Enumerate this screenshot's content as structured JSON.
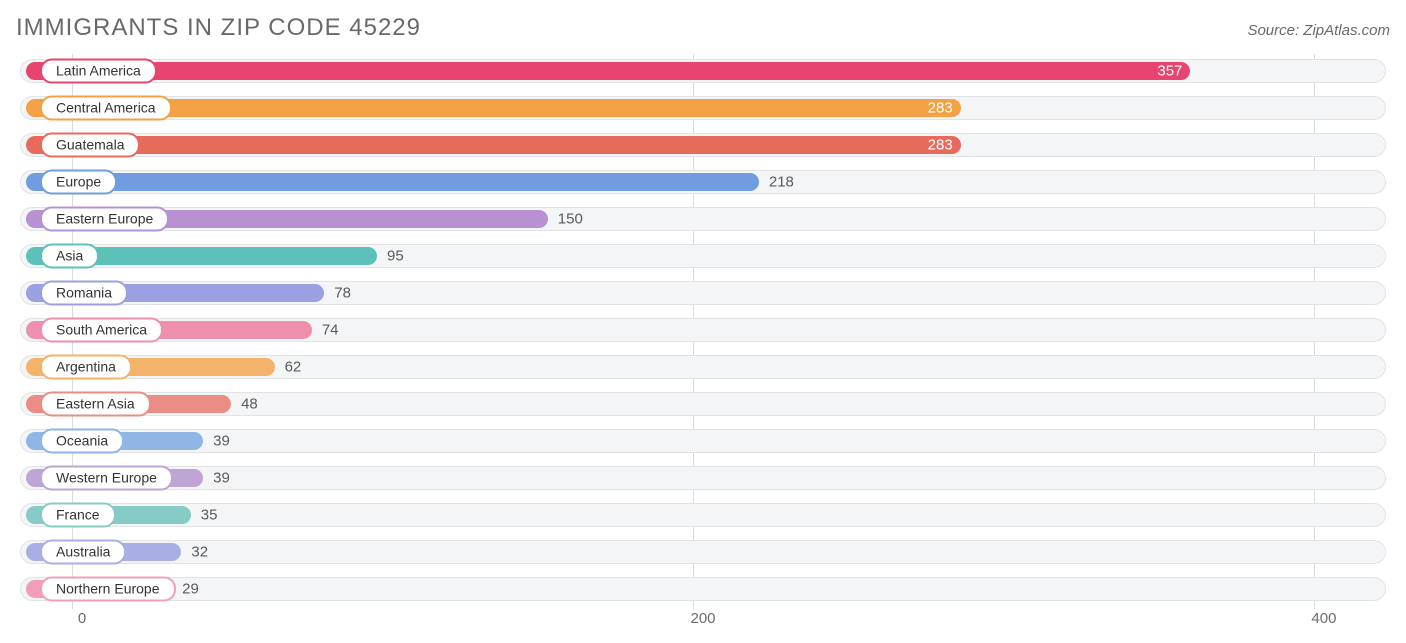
{
  "header": {
    "title": "IMMIGRANTS IN ZIP CODE 45229",
    "source": "Source: ZipAtlas.com"
  },
  "chart": {
    "type": "bar",
    "orientation": "horizontal",
    "xlim": [
      -20,
      420
    ],
    "x_ticks": [
      0,
      200,
      400
    ],
    "track_background": "#f4f5f6",
    "track_border": "#e1e3e6",
    "grid_color": "#d9dcde",
    "title_color": "#696969",
    "title_fontsize": 24,
    "source_fontsize": 15,
    "label_fontsize": 14,
    "value_fontsize": 15,
    "value_inside_threshold": 280,
    "bars": [
      {
        "label": "Latin America",
        "value": 357,
        "color": "#e9446f"
      },
      {
        "label": "Central America",
        "value": 283,
        "color": "#f2a144"
      },
      {
        "label": "Guatemala",
        "value": 283,
        "color": "#e76b5c"
      },
      {
        "label": "Europe",
        "value": 218,
        "color": "#6f9ddf"
      },
      {
        "label": "Eastern Europe",
        "value": 150,
        "color": "#b891d2"
      },
      {
        "label": "Asia",
        "value": 95,
        "color": "#5cc1b8"
      },
      {
        "label": "Romania",
        "value": 78,
        "color": "#9aa0e1"
      },
      {
        "label": "South America",
        "value": 74,
        "color": "#ef8fae"
      },
      {
        "label": "Argentina",
        "value": 62,
        "color": "#f4b36b"
      },
      {
        "label": "Eastern Asia",
        "value": 48,
        "color": "#ea8e85"
      },
      {
        "label": "Oceania",
        "value": 39,
        "color": "#8fb6e4"
      },
      {
        "label": "Western Europe",
        "value": 39,
        "color": "#bfa4d6"
      },
      {
        "label": "France",
        "value": 35,
        "color": "#86cbc5"
      },
      {
        "label": "Australia",
        "value": 32,
        "color": "#a9afe4"
      },
      {
        "label": "Northern Europe",
        "value": 29,
        "color": "#f19fb9"
      }
    ]
  }
}
